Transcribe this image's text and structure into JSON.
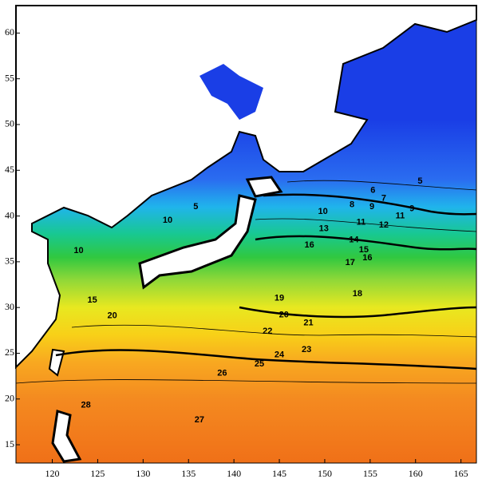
{
  "chart_data": {
    "type": "contour",
    "xlim": [
      116,
      166.7
    ],
    "ylim": [
      13,
      63
    ],
    "xticks": [
      120,
      125,
      130,
      135,
      140,
      145,
      150,
      155,
      160,
      165
    ],
    "yticks": [
      15,
      20,
      25,
      30,
      35,
      40,
      45,
      50,
      55,
      60
    ],
    "contour_labels": [
      {
        "value": 5,
        "lon": 135.8,
        "lat": 41.0
      },
      {
        "value": 10,
        "lon": 132.7,
        "lat": 39.5
      },
      {
        "value": 10,
        "lon": 122.9,
        "lat": 36.2
      },
      {
        "value": 15,
        "lon": 124.4,
        "lat": 30.8
      },
      {
        "value": 20,
        "lon": 126.6,
        "lat": 29.1
      },
      {
        "value": 28,
        "lon": 123.7,
        "lat": 19.3
      },
      {
        "value": 26,
        "lon": 138.7,
        "lat": 22.8
      },
      {
        "value": 27,
        "lon": 136.2,
        "lat": 17.7
      },
      {
        "value": 25,
        "lon": 142.8,
        "lat": 23.8
      },
      {
        "value": 24,
        "lon": 145.0,
        "lat": 24.8
      },
      {
        "value": 23,
        "lon": 148.0,
        "lat": 25.4
      },
      {
        "value": 22,
        "lon": 143.7,
        "lat": 27.4
      },
      {
        "value": 21,
        "lon": 148.2,
        "lat": 28.3
      },
      {
        "value": 20,
        "lon": 145.5,
        "lat": 29.2
      },
      {
        "value": 19,
        "lon": 145.0,
        "lat": 31.0
      },
      {
        "value": 18,
        "lon": 153.6,
        "lat": 31.5
      },
      {
        "value": 17,
        "lon": 152.8,
        "lat": 34.9
      },
      {
        "value": 16,
        "lon": 154.7,
        "lat": 35.4
      },
      {
        "value": 16,
        "lon": 148.3,
        "lat": 36.8
      },
      {
        "value": 15,
        "lon": 154.3,
        "lat": 36.3
      },
      {
        "value": 14,
        "lon": 153.2,
        "lat": 37.4
      },
      {
        "value": 13,
        "lon": 149.9,
        "lat": 38.6
      },
      {
        "value": 12,
        "lon": 156.5,
        "lat": 39.0
      },
      {
        "value": 11,
        "lon": 154.0,
        "lat": 39.3
      },
      {
        "value": 11,
        "lon": 158.3,
        "lat": 40.0
      },
      {
        "value": 10,
        "lon": 149.8,
        "lat": 40.5
      },
      {
        "value": 9,
        "lon": 159.6,
        "lat": 40.8
      },
      {
        "value": 9,
        "lon": 155.2,
        "lat": 41.0
      },
      {
        "value": 8,
        "lon": 153.0,
        "lat": 41.2
      },
      {
        "value": 7,
        "lon": 156.5,
        "lat": 41.9
      },
      {
        "value": 6,
        "lon": 155.3,
        "lat": 42.8
      },
      {
        "value": 5,
        "lon": 160.5,
        "lat": 43.8
      }
    ]
  }
}
